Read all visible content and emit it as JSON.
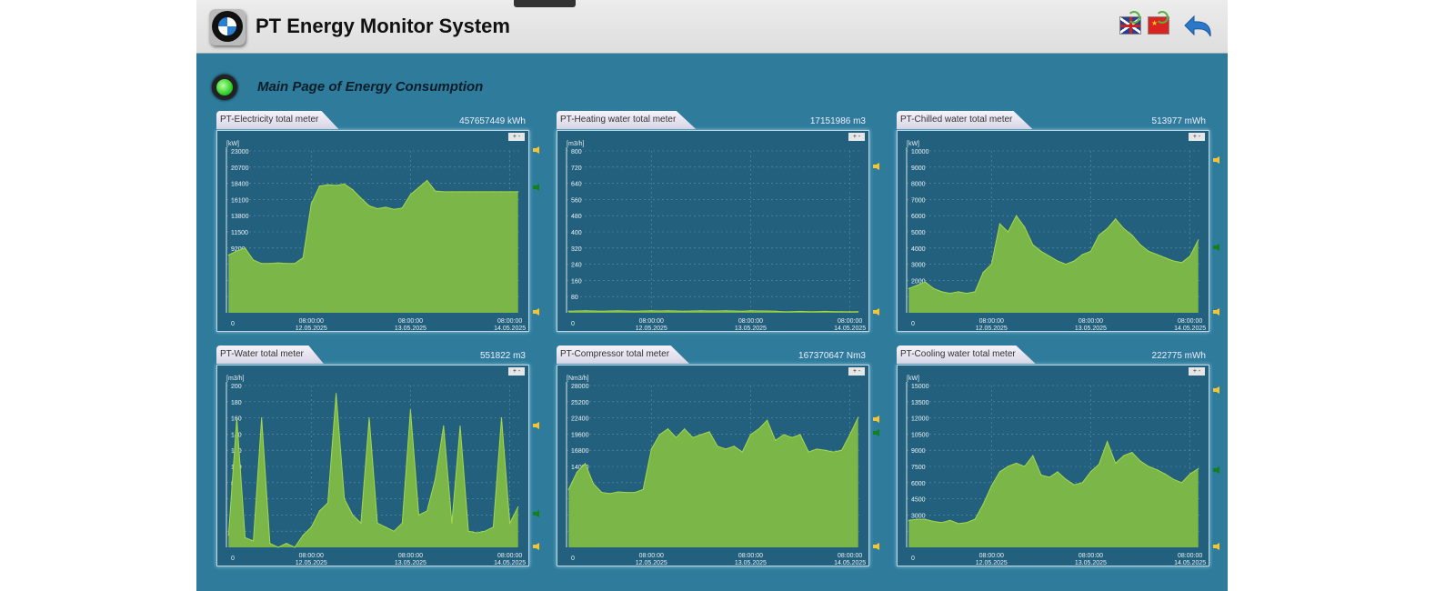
{
  "header": {
    "title": "PT Energy Monitor System",
    "subtitle": "Main Page of Energy Consumption"
  },
  "icons": {
    "logo": "bmw-logo",
    "lang_en": "uk-flag-icon",
    "lang_cn": "china-flag-icon",
    "back": "back-arrow-icon",
    "status": "green-status-led"
  },
  "colors": {
    "background": "#2e7b9c",
    "plot": "#22607e",
    "fill": "#7ab648",
    "line": "#a8d84a",
    "warn": "#f5c430",
    "ok": "#12801c"
  },
  "x_axis": {
    "xlim": [
      -20.5,
      50.5
    ],
    "ticks": [
      {
        "x": 0,
        "time": "08:00:00",
        "date": "12.05.2025"
      },
      {
        "x": 24,
        "time": "08:00:00",
        "date": "13.05.2025"
      },
      {
        "x": 48,
        "time": "08:00:00",
        "date": "14.05.2025"
      }
    ],
    "sample_x": [
      -20,
      -18,
      -16,
      -14,
      -12,
      -10,
      -8,
      -6,
      -4,
      -2,
      0,
      2,
      4,
      6,
      8,
      10,
      12,
      14,
      16,
      18,
      20,
      22,
      24,
      26,
      28,
      30,
      32,
      34,
      36,
      38,
      40,
      42,
      44,
      46,
      48,
      50
    ]
  },
  "chart_data": [
    {
      "type": "area",
      "title": "PT-Electricity total meter",
      "total": "457657449 kWh",
      "ylabel": "[kW]",
      "ylim": [
        0,
        23000
      ],
      "yticks": [
        "0",
        "2300",
        "4600",
        "6900",
        "9200",
        "11500",
        "13800",
        "16100",
        "18400",
        "20700",
        "23000"
      ],
      "markers": [
        {
          "kind": "warn",
          "value": 23000
        },
        {
          "kind": "ok",
          "value": 17700
        },
        {
          "kind": "warn",
          "value": 0
        }
      ],
      "values": [
        8200,
        8800,
        9200,
        7500,
        7000,
        7000,
        7100,
        7000,
        7000,
        7800,
        15500,
        18000,
        18200,
        18100,
        18300,
        17500,
        16300,
        15200,
        14800,
        15000,
        14700,
        14900,
        16800,
        17800,
        18800,
        17300,
        17200,
        17200,
        17200,
        17200,
        17200,
        17200,
        17200,
        17200,
        17200,
        17200
      ]
    },
    {
      "type": "area",
      "title": "PT-Heating water total meter",
      "total": "17151986 m3",
      "ylabel": "[m3/h]",
      "ylim": [
        0,
        800
      ],
      "yticks": [
        "0",
        "80",
        "160",
        "240",
        "320",
        "400",
        "480",
        "560",
        "640",
        "720",
        "800"
      ],
      "markers": [
        {
          "kind": "warn",
          "value": 720
        },
        {
          "kind": "warn",
          "value": 0
        }
      ],
      "values": [
        8,
        9,
        10,
        9,
        8,
        9,
        10,
        9,
        8,
        9,
        10,
        9,
        10,
        9,
        8,
        9,
        10,
        9,
        9,
        10,
        9,
        8,
        10,
        9,
        9,
        8,
        5,
        6,
        7,
        6,
        6,
        7,
        6,
        6,
        5,
        6
      ]
    },
    {
      "type": "area",
      "title": "PT-Chilled water total meter",
      "total": "513977 mWh",
      "ylabel": "[kW]",
      "ylim": [
        0,
        10000
      ],
      "yticks": [
        "0",
        "1000",
        "2000",
        "3000",
        "4000",
        "5000",
        "6000",
        "7000",
        "8000",
        "9000",
        "10000"
      ],
      "markers": [
        {
          "kind": "warn",
          "value": 9400
        },
        {
          "kind": "ok",
          "value": 4000
        },
        {
          "kind": "warn",
          "value": 0
        }
      ],
      "values": [
        1500,
        1700,
        1900,
        1500,
        1300,
        1200,
        1300,
        1200,
        1300,
        2500,
        3000,
        5500,
        5000,
        6000,
        5300,
        4200,
        3800,
        3500,
        3200,
        3000,
        3200,
        3600,
        3800,
        4800,
        5200,
        5800,
        5200,
        4800,
        4200,
        3800,
        3600,
        3400,
        3200,
        3100,
        3500,
        4500
      ]
    },
    {
      "type": "area",
      "title": "PT-Water total meter",
      "total": "551822 m3",
      "ylabel": "[m3/h]",
      "ylim": [
        0,
        200
      ],
      "yticks": [
        "0",
        "20",
        "40",
        "60",
        "80",
        "100",
        "120",
        "140",
        "160",
        "180",
        "200"
      ],
      "markers": [
        {
          "kind": "warn",
          "value": 150
        },
        {
          "kind": "ok",
          "value": 40
        },
        {
          "kind": "warn",
          "value": 0
        }
      ],
      "values": [
        15,
        160,
        12,
        8,
        160,
        5,
        0,
        5,
        0,
        15,
        25,
        45,
        55,
        190,
        60,
        40,
        30,
        160,
        30,
        25,
        20,
        30,
        170,
        40,
        45,
        85,
        150,
        30,
        150,
        20,
        18,
        20,
        25,
        160,
        30,
        50
      ]
    },
    {
      "type": "area",
      "title": "PT-Compressor total meter",
      "total": "167370647 Nm3",
      "ylabel": "[Nm3/h]",
      "ylim": [
        0,
        28000
      ],
      "yticks": [
        "0",
        "2800",
        "5600",
        "8400",
        "11200",
        "14000",
        "16800",
        "19600",
        "22400",
        "25200",
        "28000"
      ],
      "markers": [
        {
          "kind": "warn",
          "value": 22000
        },
        {
          "kind": "ok",
          "value": 19600
        },
        {
          "kind": "warn",
          "value": 0
        }
      ],
      "values": [
        10000,
        13000,
        14500,
        11000,
        9500,
        9300,
        9600,
        9500,
        9500,
        10000,
        17000,
        19500,
        20500,
        19000,
        20500,
        19000,
        19500,
        20000,
        17500,
        17000,
        17500,
        16500,
        19500,
        20500,
        22000,
        18500,
        19500,
        19000,
        19500,
        16500,
        17000,
        16800,
        16500,
        16800,
        19500,
        22500
      ]
    },
    {
      "type": "area",
      "title": "PT-Cooling water total meter",
      "total": "222775 mWh",
      "ylabel": "[kW]",
      "ylim": [
        0,
        15000
      ],
      "yticks": [
        "0",
        "1500",
        "3000",
        "4500",
        "6000",
        "7500",
        "9000",
        "10500",
        "12000",
        "13500",
        "15000"
      ],
      "markers": [
        {
          "kind": "warn",
          "value": 14500
        },
        {
          "kind": "ok",
          "value": 7100
        },
        {
          "kind": "warn",
          "value": 0
        }
      ],
      "values": [
        2500,
        2600,
        2600,
        2400,
        2300,
        2500,
        2200,
        2300,
        2600,
        4000,
        5700,
        7000,
        7500,
        7800,
        7500,
        8500,
        6700,
        6500,
        7000,
        6300,
        5800,
        6000,
        7000,
        7700,
        9800,
        7800,
        8500,
        8800,
        8000,
        7500,
        7200,
        6800,
        6300,
        6000,
        6800,
        7300
      ]
    }
  ]
}
